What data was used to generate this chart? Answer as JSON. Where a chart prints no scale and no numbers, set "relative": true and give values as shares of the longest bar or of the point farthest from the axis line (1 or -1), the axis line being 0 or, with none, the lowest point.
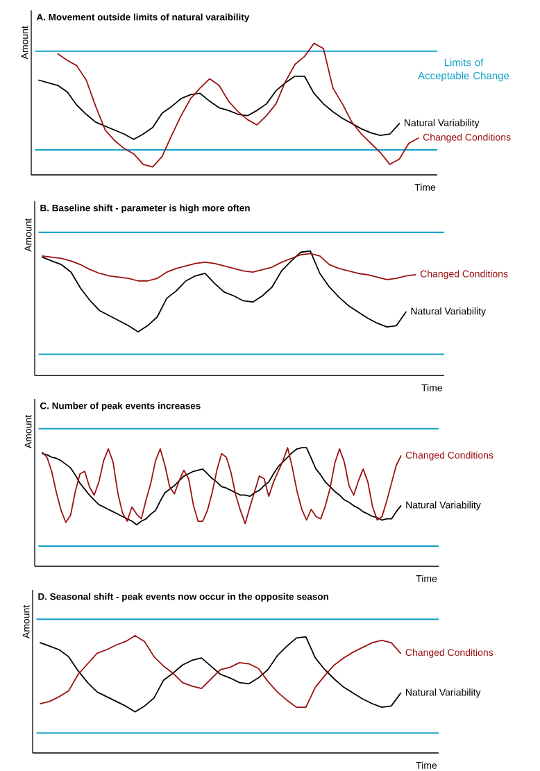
{
  "chart_data": [
    {
      "type": "line",
      "title": "A. Movement outside limits of natural varaibility",
      "xlabel": "Time",
      "ylabel": "Amount",
      "relative": true,
      "categories": [
        null,
        null,
        null,
        null,
        null,
        null,
        null,
        null,
        null,
        null,
        null,
        null,
        null,
        null,
        null,
        null,
        null,
        null,
        null,
        null,
        null,
        null,
        null,
        null,
        null,
        null,
        null,
        null,
        null,
        null,
        null,
        null,
        null,
        null,
        null,
        null,
        null,
        null,
        null,
        null,
        null
      ],
      "series": [
        {
          "name": "Natural Variability",
          "color": "#000000",
          "values": [
            0.72,
            0.7,
            0.68,
            0.63,
            0.53,
            0.46,
            0.4,
            0.37,
            0.34,
            0.31,
            0.27,
            0.31,
            0.36,
            0.47,
            0.52,
            0.58,
            0.61,
            0.62,
            0.56,
            0.51,
            0.49,
            0.46,
            0.45,
            0.49,
            0.54,
            0.64,
            0.7,
            0.75,
            0.75,
            0.62,
            0.54,
            0.48,
            0.43,
            0.39,
            0.35,
            0.32,
            0.3,
            0.31,
            0.39,
            null,
            null
          ]
        },
        {
          "name": "Changed Conditions",
          "color": "#9b1111",
          "values": [
            null,
            null,
            0.92,
            0.87,
            0.83,
            0.72,
            0.52,
            0.34,
            0.26,
            0.2,
            0.16,
            0.08,
            0.06,
            0.14,
            0.3,
            0.45,
            0.58,
            0.66,
            0.73,
            0.68,
            0.56,
            0.48,
            0.42,
            0.38,
            0.45,
            0.54,
            0.71,
            0.84,
            0.9,
            1.0,
            0.96,
            0.66,
            0.54,
            0.4,
            0.31,
            0.24,
            0.17,
            0.08,
            0.12,
            0.24,
            0.28
          ]
        }
      ],
      "ref_lines": [
        {
          "axis": "y",
          "value": 0.94,
          "label": "Limits of Acceptable Change",
          "color": "#17a2c9"
        },
        {
          "axis": "y",
          "value": 0.19,
          "color": "#17a2c9"
        }
      ]
    },
    {
      "type": "line",
      "title": "B. Baseline shift - parameter is high more often",
      "xlabel": "Time",
      "ylabel": "Amount",
      "relative": true,
      "categories": [
        null,
        null,
        null,
        null,
        null,
        null,
        null,
        null,
        null,
        null,
        null,
        null,
        null,
        null,
        null,
        null,
        null,
        null,
        null,
        null,
        null,
        null,
        null,
        null,
        null,
        null,
        null,
        null,
        null,
        null,
        null,
        null,
        null,
        null,
        null,
        null,
        null,
        null,
        null,
        null,
        null
      ],
      "series": [
        {
          "name": "Natural Variability",
          "color": "#000000",
          "values": [
            0.95,
            0.92,
            0.89,
            0.83,
            0.7,
            0.6,
            0.52,
            0.48,
            0.44,
            0.4,
            0.35,
            0.4,
            0.47,
            0.62,
            0.68,
            0.76,
            0.8,
            0.82,
            0.74,
            0.67,
            0.64,
            0.6,
            0.59,
            0.64,
            0.71,
            0.84,
            0.92,
            0.99,
            1.0,
            0.82,
            0.71,
            0.63,
            0.56,
            0.51,
            0.46,
            0.42,
            0.39,
            0.4,
            0.51,
            null,
            null
          ]
        },
        {
          "name": "Changed Conditions",
          "color": "#9b1111",
          "values": [
            0.96,
            0.95,
            0.94,
            0.92,
            0.89,
            0.85,
            0.82,
            0.8,
            0.79,
            0.78,
            0.76,
            0.76,
            0.78,
            0.83,
            0.86,
            0.88,
            0.9,
            0.91,
            0.9,
            0.88,
            0.86,
            0.84,
            0.83,
            0.85,
            0.87,
            0.91,
            0.94,
            0.97,
            0.98,
            0.96,
            0.89,
            0.86,
            0.84,
            0.82,
            0.81,
            0.79,
            0.77,
            0.78,
            0.8,
            0.81,
            null
          ]
        }
      ],
      "ref_lines": [
        {
          "axis": "y",
          "value": 1.15,
          "color": "#17a2c9"
        },
        {
          "axis": "y",
          "value": 0.17,
          "color": "#17a2c9"
        }
      ]
    },
    {
      "type": "line",
      "title": "C. Number of peak events increases",
      "xlabel": "Time",
      "ylabel": "Amount",
      "relative": true,
      "categories": [
        null,
        null,
        null,
        null,
        null,
        null,
        null,
        null,
        null,
        null,
        null,
        null,
        null,
        null,
        null,
        null,
        null,
        null,
        null,
        null,
        null,
        null,
        null,
        null,
        null,
        null,
        null,
        null,
        null,
        null,
        null,
        null,
        null,
        null,
        null,
        null,
        null,
        null,
        null,
        null,
        null,
        null,
        null,
        null,
        null,
        null,
        null,
        null,
        null,
        null,
        null,
        null,
        null,
        null,
        null,
        null,
        null,
        null,
        null,
        null,
        null,
        null,
        null,
        null,
        null,
        null,
        null,
        null,
        null,
        null,
        null,
        null,
        null,
        null,
        null,
        null,
        null,
        null,
        null,
        null,
        null
      ],
      "series": [
        {
          "name": "Natural Variability",
          "color": "#000000",
          "values": [
            0.95,
            0.94,
            0.92,
            0.91,
            0.89,
            0.86,
            0.83,
            0.77,
            0.7,
            0.65,
            0.6,
            0.56,
            0.52,
            0.5,
            0.48,
            0.46,
            0.44,
            0.42,
            0.4,
            0.38,
            0.35,
            0.38,
            0.4,
            0.44,
            0.47,
            0.55,
            0.62,
            0.65,
            0.68,
            0.72,
            0.76,
            0.78,
            0.8,
            0.81,
            0.82,
            0.78,
            0.74,
            0.71,
            0.67,
            0.66,
            0.64,
            0.62,
            0.6,
            0.6,
            0.59,
            0.62,
            0.64,
            0.68,
            0.71,
            0.78,
            0.84,
            0.88,
            0.92,
            0.96,
            0.99,
            1.0,
            1.0,
            0.91,
            0.82,
            0.77,
            0.71,
            0.67,
            0.63,
            0.6,
            0.56,
            0.54,
            0.51,
            0.49,
            0.46,
            0.44,
            0.42,
            0.41,
            0.39,
            0.4,
            0.4,
            0.46,
            0.51,
            null,
            null,
            null,
            null
          ]
        },
        {
          "name": "Changed Conditions",
          "color": "#9b1111",
          "values": [
            0.96,
            0.92,
            0.8,
            0.62,
            0.47,
            0.37,
            0.43,
            0.63,
            0.78,
            0.8,
            0.67,
            0.6,
            0.71,
            0.89,
            0.99,
            0.88,
            0.62,
            0.45,
            0.38,
            0.5,
            0.44,
            0.4,
            0.56,
            0.7,
            0.89,
            0.99,
            0.85,
            0.67,
            0.61,
            0.72,
            0.81,
            0.74,
            0.52,
            0.38,
            0.38,
            0.47,
            0.62,
            0.81,
            0.95,
            0.92,
            0.79,
            0.6,
            0.47,
            0.36,
            0.5,
            0.63,
            0.76,
            0.74,
            0.59,
            0.71,
            0.8,
            0.89,
            1.0,
            0.83,
            0.63,
            0.48,
            0.39,
            0.48,
            0.42,
            0.4,
            0.51,
            0.66,
            0.87,
            0.99,
            0.88,
            0.68,
            0.6,
            0.72,
            0.82,
            0.71,
            0.5,
            0.39,
            0.42,
            0.55,
            0.7,
            0.85,
            0.93,
            null,
            null,
            null,
            null
          ]
        }
      ],
      "ref_lines": [
        {
          "axis": "y",
          "value": 1.16,
          "color": "#17a2c9"
        },
        {
          "axis": "y",
          "value": 0.17,
          "color": "#17a2c9"
        }
      ]
    },
    {
      "type": "line",
      "title": "D. Seasonal shift - peak events now occur in the opposite season",
      "xlabel": "Time",
      "ylabel": "Amount",
      "relative": true,
      "categories": [
        null,
        null,
        null,
        null,
        null,
        null,
        null,
        null,
        null,
        null,
        null,
        null,
        null,
        null,
        null,
        null,
        null,
        null,
        null,
        null,
        null,
        null,
        null,
        null,
        null,
        null,
        null,
        null,
        null,
        null,
        null,
        null,
        null,
        null,
        null,
        null,
        null,
        null,
        null,
        null,
        null
      ],
      "series": [
        {
          "name": "Natural Variability",
          "color": "#000000",
          "values": [
            0.94,
            0.91,
            0.88,
            0.82,
            0.7,
            0.6,
            0.52,
            0.48,
            0.44,
            0.4,
            0.35,
            0.4,
            0.47,
            0.62,
            0.68,
            0.75,
            0.79,
            0.81,
            0.74,
            0.67,
            0.64,
            0.6,
            0.59,
            0.64,
            0.71,
            0.83,
            0.91,
            0.98,
            0.99,
            0.81,
            0.71,
            0.63,
            0.56,
            0.51,
            0.46,
            0.42,
            0.39,
            0.4,
            0.51,
            null,
            null
          ]
        },
        {
          "name": "Changed Conditions",
          "color": "#9b1111",
          "values": [
            0.42,
            0.44,
            0.48,
            0.53,
            0.67,
            0.76,
            0.85,
            0.88,
            0.92,
            0.95,
            1.0,
            0.95,
            0.82,
            0.74,
            0.68,
            0.6,
            0.57,
            0.55,
            0.63,
            0.71,
            0.73,
            0.77,
            0.76,
            0.72,
            0.61,
            0.52,
            0.45,
            0.39,
            0.39,
            0.56,
            0.66,
            0.75,
            0.81,
            0.86,
            0.9,
            0.94,
            0.96,
            0.94,
            0.85,
            null,
            null
          ]
        }
      ],
      "ref_lines": [
        {
          "axis": "y",
          "value": 1.14,
          "color": "#17a2c9"
        },
        {
          "axis": "y",
          "value": 0.17,
          "color": "#17a2c9"
        }
      ]
    }
  ]
}
